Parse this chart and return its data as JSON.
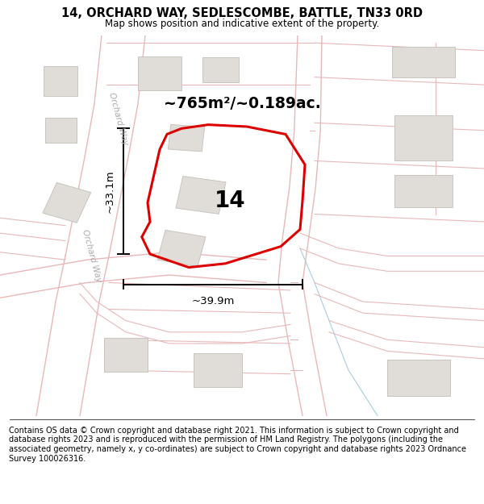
{
  "title": "14, ORCHARD WAY, SEDLESCOMBE, BATTLE, TN33 0RD",
  "subtitle": "Map shows position and indicative extent of the property.",
  "footer": "Contains OS data © Crown copyright and database right 2021. This information is subject to Crown copyright and database rights 2023 and is reproduced with the permission of HM Land Registry. The polygons (including the associated geometry, namely x, y co-ordinates) are subject to Crown copyright and database rights 2023 Ordnance Survey 100026316.",
  "map_bg": "#f7f5f2",
  "road_fill": "#ffffff",
  "road_edge": "#e8b8b8",
  "road_edge_width": 1.0,
  "building_fill": "#e0ddd8",
  "building_outline": "#c8c4be",
  "plot_color": "#dd0000",
  "plot_linewidth": 2.2,
  "street_label_color": "#aaaaaa",
  "street_label_upper": "Orchard Way",
  "street_label_lower": "Orchard Way",
  "area_label": "~765m²/~0.189ac.",
  "number_label": "14",
  "dim_h_label": "~33.1m",
  "dim_w_label": "~39.9m",
  "blue_line_color": "#aaccdd",
  "figsize": [
    6.0,
    6.25
  ],
  "dpi": 100,
  "title_fontsize": 10.5,
  "subtitle_fontsize": 8.5,
  "footer_fontsize": 7.0
}
